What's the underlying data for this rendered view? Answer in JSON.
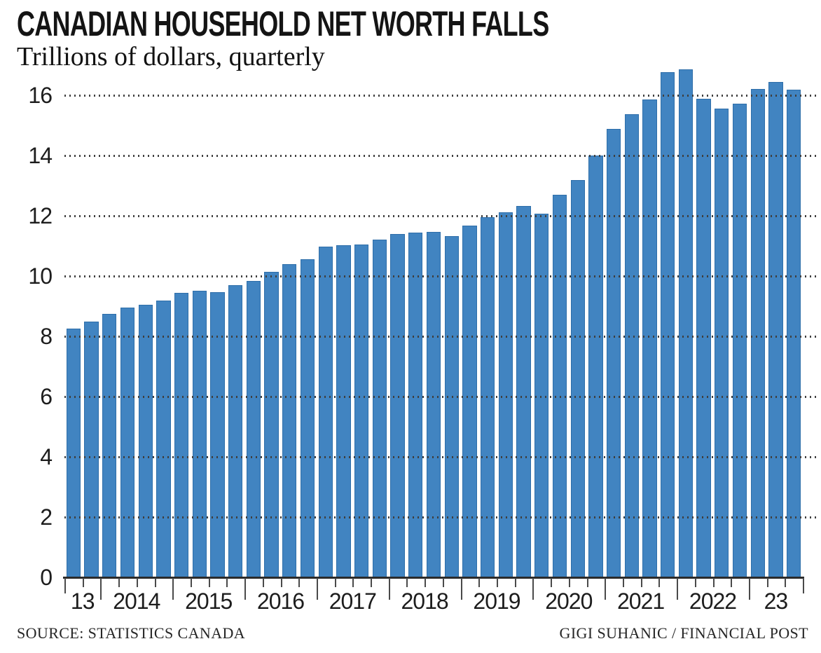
{
  "page": {
    "title": "CANADIAN HOUSEHOLD NET WORTH FALLS",
    "subtitle": "Trillions of dollars, quarterly",
    "source": "SOURCE: STATISTICS CANADA",
    "credit": "GIGI SUHANIC / FINANCIAL POST"
  },
  "colors": {
    "bar": "#4184c1",
    "bar_edge": "#2e6ea9",
    "grid_dot": "#3f3f3f",
    "axis": "#2b2b2b",
    "tick": "#4a4a4a"
  },
  "chart_data": {
    "type": "bar",
    "title": "CANADIAN HOUSEHOLD NET WORTH FALLS",
    "subtitle": "Trillions of dollars, quarterly",
    "ylabel": "Trillions of dollars",
    "xlabel": "",
    "grid": "horizontal-dotted-over-bars",
    "legend": "none",
    "yticks": [
      0,
      2,
      4,
      6,
      8,
      10,
      12,
      14,
      16
    ],
    "ylim": [
      0,
      16.9
    ],
    "x": [
      "2013 Q3",
      "2013 Q4",
      "2014 Q1",
      "2014 Q2",
      "2014 Q3",
      "2014 Q4",
      "2015 Q1",
      "2015 Q2",
      "2015 Q3",
      "2015 Q4",
      "2016 Q1",
      "2016 Q2",
      "2016 Q3",
      "2016 Q4",
      "2017 Q1",
      "2017 Q2",
      "2017 Q3",
      "2017 Q4",
      "2018 Q1",
      "2018 Q2",
      "2018 Q3",
      "2018 Q4",
      "2019 Q1",
      "2019 Q2",
      "2019 Q3",
      "2019 Q4",
      "2020 Q1",
      "2020 Q2",
      "2020 Q3",
      "2020 Q4",
      "2021 Q1",
      "2021 Q2",
      "2021 Q3",
      "2021 Q4",
      "2022 Q1",
      "2022 Q2",
      "2022 Q3",
      "2022 Q4",
      "2023 Q1",
      "2023 Q2",
      "2023 Q3"
    ],
    "values": [
      8.26,
      8.49,
      8.74,
      8.95,
      9.05,
      9.19,
      9.44,
      9.51,
      9.47,
      9.7,
      9.84,
      10.14,
      10.4,
      10.56,
      10.98,
      11.02,
      11.05,
      11.21,
      11.4,
      11.44,
      11.47,
      11.33,
      11.67,
      11.95,
      12.12,
      12.33,
      12.07,
      12.7,
      13.19,
      14.0,
      14.88,
      15.37,
      15.86,
      16.77,
      16.86,
      15.88,
      15.55,
      15.72,
      16.21,
      16.44,
      16.19
    ],
    "x_year_groups": [
      {
        "label": "13",
        "bars": 2
      },
      {
        "label": "2014",
        "bars": 4
      },
      {
        "label": "2015",
        "bars": 4
      },
      {
        "label": "2016",
        "bars": 4
      },
      {
        "label": "2017",
        "bars": 4
      },
      {
        "label": "2018",
        "bars": 4
      },
      {
        "label": "2019",
        "bars": 4
      },
      {
        "label": "2020",
        "bars": 4
      },
      {
        "label": "2021",
        "bars": 4
      },
      {
        "label": "2022",
        "bars": 4
      },
      {
        "label": "23",
        "bars": 3
      }
    ]
  }
}
